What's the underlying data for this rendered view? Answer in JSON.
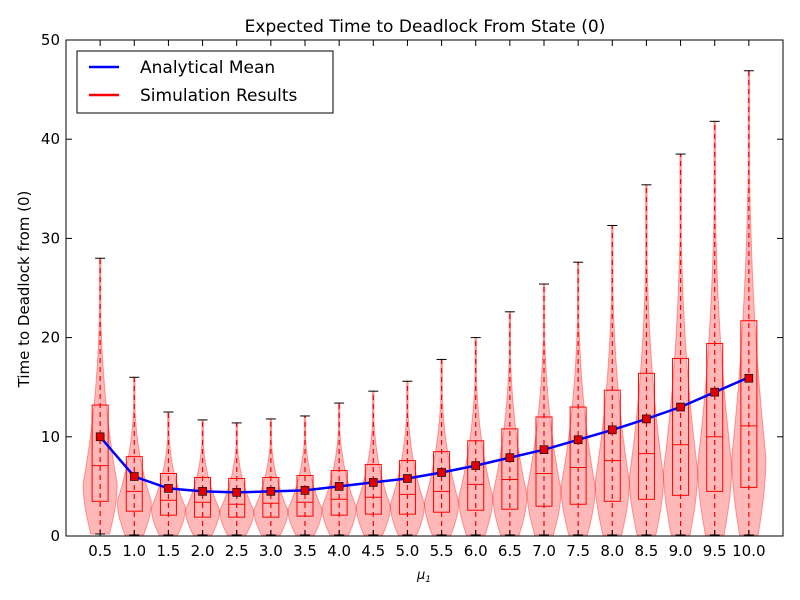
{
  "chart_data": {
    "type": "violin",
    "title": "Expected Time to Deadlock From State (0)",
    "xlabel": "μ",
    "xlabel_subscript": "1",
    "ylabel": "Time to Deadlock from (0)",
    "ylim": [
      0,
      50
    ],
    "yticks": [
      0,
      10,
      20,
      30,
      40,
      50
    ],
    "categories": [
      "0.5",
      "1.0",
      "1.5",
      "2.0",
      "2.5",
      "3.0",
      "3.5",
      "4.0",
      "4.5",
      "5.0",
      "5.5",
      "6.0",
      "6.5",
      "7.0",
      "7.5",
      "8.0",
      "8.5",
      "9.0",
      "9.5",
      "10.0"
    ],
    "legend": {
      "placement": "top-left",
      "entries": [
        {
          "label": "Analytical Mean",
          "color": "#0000ff"
        },
        {
          "label": "Simulation Results",
          "color": "#ff0000"
        }
      ]
    },
    "series": [
      {
        "name": "Analytical Mean",
        "color": "#0000ff",
        "values": [
          10.0,
          6.0,
          4.8,
          4.5,
          4.4,
          4.5,
          4.6,
          5.0,
          5.4,
          5.8,
          6.4,
          7.1,
          7.9,
          8.7,
          9.7,
          10.7,
          11.8,
          13.0,
          14.5,
          16.0
        ]
      },
      {
        "name": "Simulation Results",
        "color": "#ff0000",
        "mean": [
          10.0,
          6.0,
          4.8,
          4.5,
          4.4,
          4.5,
          4.6,
          5.0,
          5.4,
          5.8,
          6.4,
          7.1,
          7.9,
          8.7,
          9.7,
          10.7,
          11.8,
          13.0,
          14.5,
          15.9
        ],
        "max": [
          28.0,
          16.0,
          12.5,
          11.7,
          11.4,
          11.8,
          12.1,
          13.4,
          14.6,
          15.6,
          17.8,
          20.0,
          22.6,
          25.4,
          27.6,
          31.3,
          35.4,
          38.5,
          41.8,
          46.9
        ],
        "min": [
          0.2,
          0.1,
          0.1,
          0.1,
          0.1,
          0.1,
          0.1,
          0.1,
          0.1,
          0.1,
          0.1,
          0.1,
          0.1,
          0.1,
          0.1,
          0.1,
          0.1,
          0.1,
          0.1,
          0.1
        ],
        "q1": [
          3.5,
          2.5,
          2.1,
          1.9,
          1.9,
          1.9,
          2.0,
          2.1,
          2.2,
          2.2,
          2.4,
          2.6,
          2.7,
          3.0,
          3.2,
          3.5,
          3.7,
          4.1,
          4.5,
          4.9
        ],
        "median": [
          7.1,
          4.5,
          3.6,
          3.4,
          3.2,
          3.3,
          3.4,
          3.7,
          3.9,
          4.2,
          4.5,
          5.2,
          5.7,
          6.3,
          6.9,
          7.6,
          8.3,
          9.2,
          10.0,
          11.1
        ],
        "q3": [
          13.2,
          8.0,
          6.3,
          5.9,
          5.8,
          5.9,
          6.1,
          6.6,
          7.2,
          7.6,
          8.5,
          9.6,
          10.8,
          12.0,
          13.0,
          14.7,
          16.4,
          17.9,
          19.4,
          21.7
        ]
      }
    ]
  }
}
